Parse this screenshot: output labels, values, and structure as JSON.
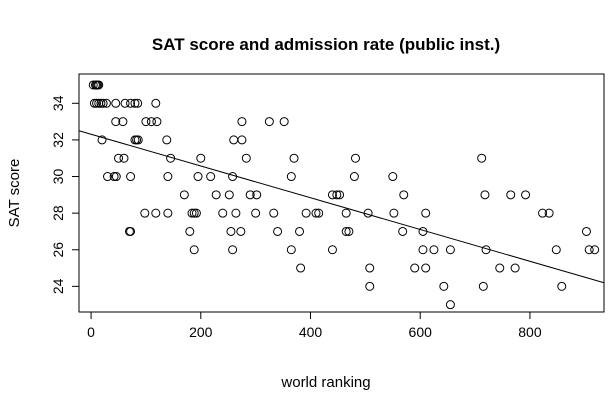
{
  "chart_data": {
    "type": "scatter",
    "title": "SAT score and admission rate (public inst.)",
    "xlabel": "world ranking",
    "ylabel": "SAT score",
    "xlim": [
      -22,
      935
    ],
    "ylim": [
      22.6,
      35.6
    ],
    "xticks": [
      0,
      200,
      400,
      600,
      800
    ],
    "yticks": [
      24,
      26,
      28,
      30,
      32,
      34
    ],
    "grid": false,
    "marker": "open-circle",
    "colors": {
      "marker": "#000000",
      "line": "#000000",
      "axis": "#000000"
    },
    "regression_line": {
      "start": [
        -22,
        32.5
      ],
      "end": [
        935,
        24.2
      ]
    },
    "points": [
      [
        4,
        35
      ],
      [
        8,
        35
      ],
      [
        10,
        35
      ],
      [
        12,
        35
      ],
      [
        14,
        35
      ],
      [
        6,
        34
      ],
      [
        10,
        34
      ],
      [
        14,
        34
      ],
      [
        18,
        34
      ],
      [
        22,
        34
      ],
      [
        28,
        34
      ],
      [
        45,
        34
      ],
      [
        62,
        34
      ],
      [
        72,
        34
      ],
      [
        80,
        34
      ],
      [
        85,
        34
      ],
      [
        118,
        34
      ],
      [
        20,
        32
      ],
      [
        45,
        33
      ],
      [
        58,
        33
      ],
      [
        100,
        33
      ],
      [
        110,
        33
      ],
      [
        120,
        33
      ],
      [
        275,
        33
      ],
      [
        325,
        33
      ],
      [
        352,
        33
      ],
      [
        80,
        32
      ],
      [
        83,
        32
      ],
      [
        86,
        32
      ],
      [
        138,
        32
      ],
      [
        260,
        32
      ],
      [
        275,
        32
      ],
      [
        50,
        31
      ],
      [
        60,
        31
      ],
      [
        145,
        31
      ],
      [
        200,
        31
      ],
      [
        283,
        31
      ],
      [
        370,
        31
      ],
      [
        482,
        31
      ],
      [
        712,
        31
      ],
      [
        30,
        30
      ],
      [
        42,
        30
      ],
      [
        46,
        30
      ],
      [
        72,
        30
      ],
      [
        140,
        30
      ],
      [
        195,
        30
      ],
      [
        218,
        30
      ],
      [
        258,
        30
      ],
      [
        365,
        30
      ],
      [
        480,
        30
      ],
      [
        550,
        30
      ],
      [
        170,
        29
      ],
      [
        228,
        29
      ],
      [
        252,
        29
      ],
      [
        290,
        29
      ],
      [
        302,
        29
      ],
      [
        440,
        29
      ],
      [
        448,
        29
      ],
      [
        453,
        29
      ],
      [
        570,
        29
      ],
      [
        718,
        29
      ],
      [
        765,
        29
      ],
      [
        792,
        29
      ],
      [
        98,
        28
      ],
      [
        118,
        28
      ],
      [
        140,
        28
      ],
      [
        184,
        28
      ],
      [
        188,
        28
      ],
      [
        192,
        28
      ],
      [
        240,
        28
      ],
      [
        264,
        28
      ],
      [
        300,
        28
      ],
      [
        333,
        28
      ],
      [
        392,
        28
      ],
      [
        410,
        28
      ],
      [
        415,
        28
      ],
      [
        465,
        28
      ],
      [
        505,
        28
      ],
      [
        552,
        28
      ],
      [
        610,
        28
      ],
      [
        823,
        28
      ],
      [
        835,
        28
      ],
      [
        70,
        27
      ],
      [
        72,
        27
      ],
      [
        180,
        27
      ],
      [
        255,
        27
      ],
      [
        273,
        27
      ],
      [
        340,
        27
      ],
      [
        380,
        27
      ],
      [
        465,
        27
      ],
      [
        470,
        27
      ],
      [
        568,
        27
      ],
      [
        605,
        27
      ],
      [
        903,
        27
      ],
      [
        188,
        26
      ],
      [
        258,
        26
      ],
      [
        440,
        26
      ],
      [
        605,
        26
      ],
      [
        625,
        26
      ],
      [
        655,
        26
      ],
      [
        720,
        26
      ],
      [
        848,
        26
      ],
      [
        908,
        26
      ],
      [
        918,
        26
      ],
      [
        365,
        26
      ],
      [
        382,
        25
      ],
      [
        508,
        25
      ],
      [
        590,
        25
      ],
      [
        610,
        25
      ],
      [
        745,
        25
      ],
      [
        773,
        25
      ],
      [
        508,
        24
      ],
      [
        643,
        24
      ],
      [
        715,
        24
      ],
      [
        858,
        24
      ],
      [
        655,
        23
      ]
    ]
  }
}
